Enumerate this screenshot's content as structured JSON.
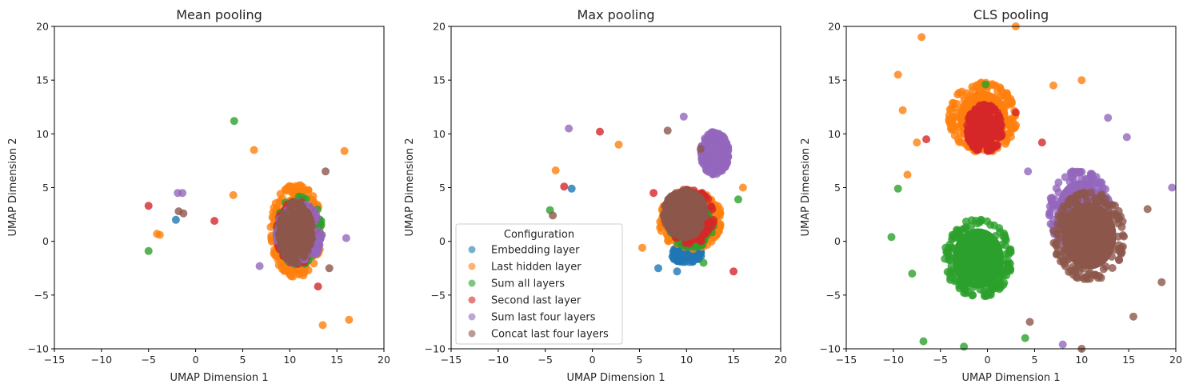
{
  "colors": {
    "embedding": "#1f77b4",
    "last_hidden": "#ff7f0e",
    "sum_all": "#2ca02c",
    "second_last": "#d62728",
    "sum_last_four": "#9467bd",
    "concat_last_four": "#8c564b"
  },
  "chart_data": [
    {
      "type": "scatter",
      "title": "Mean pooling",
      "xlabel": "UMAP Dimension 1",
      "ylabel": "UMAP Dimension 2",
      "xlim": [
        -15,
        20
      ],
      "ylim": [
        -10,
        20
      ],
      "xticks": [
        "−15",
        "−10",
        "−5",
        "0",
        "5",
        "10",
        "15",
        "20"
      ],
      "yticks": [
        "−10",
        "−5",
        "0",
        "5",
        "10",
        "15",
        "20"
      ],
      "grid": false,
      "legend": null,
      "series": [
        {
          "name": "Embedding layer",
          "color": "embedding",
          "outliers": [
            [
              -2.1,
              2.0
            ],
            [
              8.5,
              -1.0
            ]
          ],
          "clusters": []
        },
        {
          "name": "Last hidden layer",
          "color": "last_hidden",
          "outliers": [
            [
              -4.1,
              0.7
            ],
            [
              -3.8,
              0.6
            ],
            [
              4.0,
              4.3
            ],
            [
              16.3,
              -7.3
            ],
            [
              13.5,
              -7.8
            ],
            [
              6.2,
              8.5
            ],
            [
              15.8,
              8.4
            ]
          ],
          "clusters": [
            [
              10.7,
              1.0,
              5.2,
              8.2,
              1
            ]
          ]
        },
        {
          "name": "Sum all layers",
          "color": "sum_all",
          "outliers": [
            [
              4.1,
              11.2
            ],
            [
              -5.0,
              -0.9
            ]
          ],
          "clusters": [
            [
              11.0,
              1.0,
              4.6,
              6.2,
              0.5
            ]
          ]
        },
        {
          "name": "Second last layer",
          "color": "second_last",
          "outliers": [
            [
              -5.0,
              3.3
            ],
            [
              2.0,
              1.9
            ],
            [
              13.0,
              -4.2
            ]
          ],
          "clusters": [
            [
              10.8,
              0.8,
              4.3,
              5.6,
              0.45
            ]
          ]
        },
        {
          "name": "Sum last four layers",
          "color": "sum_last_four",
          "outliers": [
            [
              -1.9,
              4.5
            ],
            [
              -1.4,
              4.5
            ],
            [
              16.0,
              0.3
            ],
            [
              6.8,
              -2.3
            ]
          ],
          "clusters": [
            [
              11.0,
              0.8,
              4.6,
              5.6,
              0.5
            ]
          ]
        },
        {
          "name": "Concat last four layers",
          "color": "concat_last_four",
          "outliers": [
            [
              -1.8,
              2.8
            ],
            [
              -1.3,
              2.6
            ],
            [
              13.8,
              6.5
            ],
            [
              14.2,
              -2.5
            ]
          ],
          "clusters": [
            [
              10.6,
              0.8,
              3.4,
              5.4,
              1
            ]
          ]
        }
      ]
    },
    {
      "type": "scatter",
      "title": "Max pooling",
      "xlabel": "UMAP Dimension 1",
      "ylabel": "UMAP Dimension 2",
      "xlim": [
        -15,
        20
      ],
      "ylim": [
        -10,
        20
      ],
      "xticks": [
        "−15",
        "−10",
        "−5",
        "0",
        "5",
        "10",
        "15",
        "20"
      ],
      "yticks": [
        "−10",
        "−5",
        "0",
        "5",
        "10",
        "15",
        "20"
      ],
      "grid": false,
      "legend": "lower-left",
      "legend_title": "Configuration",
      "series": [
        {
          "name": "Embedding layer",
          "color": "embedding",
          "outliers": [
            [
              -2.2,
              4.9
            ],
            [
              7.0,
              -2.5
            ],
            [
              9.0,
              -2.8
            ]
          ],
          "clusters": [
            [
              10.0,
              -1.2,
              3.0,
              1.6,
              0.35
            ]
          ]
        },
        {
          "name": "Last hidden layer",
          "color": "last_hidden",
          "outliers": [
            [
              -3.9,
              6.6
            ],
            [
              2.8,
              9.0
            ],
            [
              16.0,
              5.0
            ],
            [
              5.3,
              -0.6
            ]
          ],
          "clusters": [
            [
              10.4,
              2.0,
              6.4,
              5.2,
              1
            ]
          ]
        },
        {
          "name": "Sum all layers",
          "color": "sum_all",
          "outliers": [
            [
              -4.5,
              2.9
            ],
            [
              15.5,
              3.9
            ],
            [
              11.8,
              -2.0
            ]
          ],
          "clusters": [
            [
              10.5,
              1.5,
              4.6,
              4.0,
              0.5
            ]
          ]
        },
        {
          "name": "Second last layer",
          "color": "second_last",
          "outliers": [
            [
              -3.0,
              5.1
            ],
            [
              0.8,
              10.2
            ],
            [
              6.5,
              4.5
            ],
            [
              15.0,
              -2.8
            ]
          ],
          "clusters": [
            [
              10.4,
              2.3,
              4.8,
              4.8,
              0.6
            ]
          ]
        },
        {
          "name": "Sum last four layers",
          "color": "sum_last_four",
          "outliers": [
            [
              -2.5,
              10.5
            ],
            [
              9.7,
              11.6
            ]
          ],
          "clusters": [
            [
              13.0,
              8.2,
              2.8,
              3.8,
              1
            ]
          ]
        },
        {
          "name": "Concat last four layers",
          "color": "concat_last_four",
          "outliers": [
            [
              -4.2,
              2.4
            ],
            [
              8.0,
              10.3
            ],
            [
              11.5,
              8.6
            ]
          ],
          "clusters": [
            [
              9.8,
              2.6,
              4.2,
              4.2,
              1
            ]
          ]
        }
      ]
    },
    {
      "type": "scatter",
      "title": "CLS pooling",
      "xlabel": "UMAP Dimension 1",
      "ylabel": "UMAP Dimension 2",
      "xlim": [
        -15,
        20
      ],
      "ylim": [
        -10,
        20
      ],
      "xticks": [
        "−15",
        "−10",
        "−5",
        "0",
        "5",
        "10",
        "15",
        "20"
      ],
      "yticks": [
        "−10",
        "−5",
        "0",
        "5",
        "10",
        "15",
        "20"
      ],
      "grid": false,
      "legend": null,
      "series": [
        {
          "name": "Embedding layer",
          "color": "embedding",
          "outliers": [],
          "clusters": []
        },
        {
          "name": "Last hidden layer",
          "color": "last_hidden",
          "outliers": [
            [
              -7.0,
              19.0
            ],
            [
              -9.5,
              15.5
            ],
            [
              -9.0,
              12.2
            ],
            [
              -7.5,
              9.2
            ],
            [
              3.0,
              20.0
            ],
            [
              7.0,
              14.5
            ],
            [
              10.0,
              15.0
            ],
            [
              -8.5,
              6.2
            ]
          ],
          "clusters": [
            [
              -0.5,
              11.5,
              6.8,
              6.2,
              1
            ]
          ]
        },
        {
          "name": "Sum all layers",
          "color": "sum_all",
          "outliers": [
            [
              -10.2,
              0.4
            ],
            [
              -9.5,
              4.9
            ],
            [
              -6.8,
              -9.3
            ],
            [
              -2.5,
              -9.8
            ],
            [
              -0.2,
              14.6
            ],
            [
              4.0,
              -9.0
            ],
            [
              -8.0,
              -3.0
            ]
          ],
          "clusters": [
            [
              -1.0,
              -1.6,
              6.8,
              7.0,
              1
            ]
          ]
        },
        {
          "name": "Second last layer",
          "color": "second_last",
          "outliers": [
            [
              -6.5,
              9.5
            ],
            [
              3.0,
              12.0
            ],
            [
              5.8,
              9.2
            ]
          ],
          "clusters": [
            [
              -0.3,
              10.5,
              3.6,
              4.2,
              1
            ]
          ]
        },
        {
          "name": "Sum last four layers",
          "color": "sum_last_four",
          "outliers": [
            [
              19.6,
              5.0
            ],
            [
              8.0,
              -9.6
            ],
            [
              12.8,
              11.5
            ],
            [
              14.8,
              9.7
            ],
            [
              4.3,
              6.5
            ]
          ],
          "clusters": [
            [
              9.8,
              2.8,
              6.2,
              7.2,
              0.8
            ]
          ]
        },
        {
          "name": "Concat last four layers",
          "color": "concat_last_four",
          "outliers": [
            [
              18.5,
              -3.8
            ],
            [
              10.0,
              -10.0
            ],
            [
              4.5,
              -7.5
            ],
            [
              17.0,
              3.0
            ],
            [
              15.5,
              -7.0
            ]
          ],
          "clusters": [
            [
              10.8,
              0.5,
              7.2,
              7.8,
              1
            ]
          ]
        }
      ]
    }
  ]
}
